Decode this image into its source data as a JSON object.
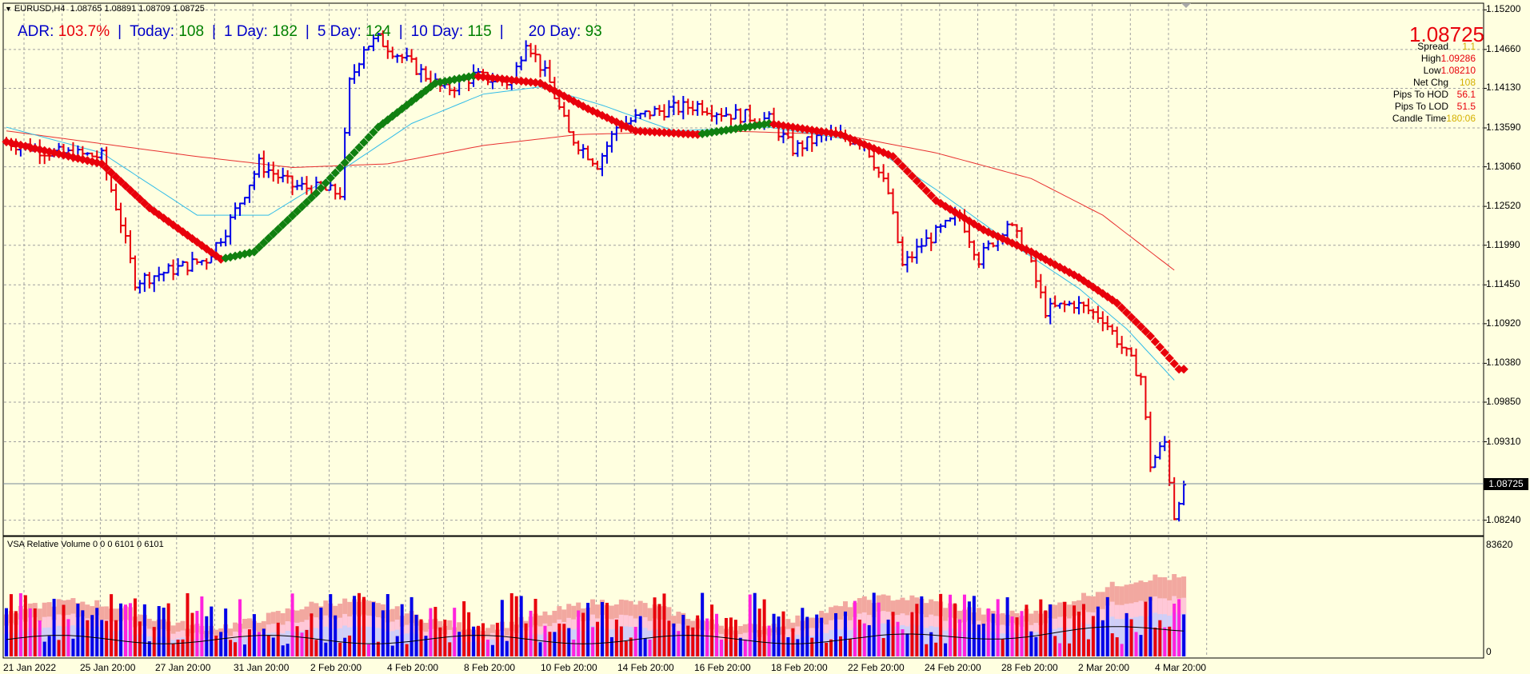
{
  "header": {
    "symbol": "EURUSD,H4",
    "ohlc": "1.08765 1.08891 1.08709 1.08725"
  },
  "adr": {
    "adr_label": "ADR:",
    "adr_value": "103.7%",
    "today_label": "Today:",
    "today_value": "108",
    "day1_label": "1 Day:",
    "day1_value": "182",
    "day5_label": "5 Day:",
    "day5_value": "124",
    "day10_label": "10 Day:",
    "day10_value": "115",
    "day20_label": "20 Day:",
    "day20_value": "93"
  },
  "info_panel": {
    "price": "1.08725",
    "rows": [
      {
        "label": "Spread",
        "value": "1.1",
        "color": "#D4B000"
      },
      {
        "label": "High",
        "value": "1.09286",
        "color": "#E8000B"
      },
      {
        "label": "Low",
        "value": "1.08210",
        "color": "#E8000B"
      },
      {
        "label": "Net Chg",
        "value": "108",
        "color": "#D4B000"
      },
      {
        "label": "Pips To HOD",
        "value": "56.1",
        "color": "#E8000B"
      },
      {
        "label": "Pips To LOD",
        "value": "51.5",
        "color": "#E8000B"
      },
      {
        "label": "Candle Time",
        "value": "180:06",
        "color": "#D4B000"
      }
    ]
  },
  "subwindow": {
    "label": "VSA Relative Volume 0 0 0 6101 0 6101",
    "ymax_label": "83620",
    "ymin_label": "0"
  },
  "chart_data": {
    "type": "bar",
    "price_axis": {
      "ticks": [
        "1.15200",
        "1.14660",
        "1.14130",
        "1.13590",
        "1.13060",
        "1.12520",
        "1.11990",
        "1.11450",
        "1.10920",
        "1.10380",
        "1.09850",
        "1.09310",
        "1.08725",
        "1.08240"
      ],
      "ylim": [
        1.0804,
        1.1528
      ],
      "current_price": "1.08725"
    },
    "time_axis": {
      "labels": [
        "21 Jan 2022",
        "25 Jan 20:00",
        "27 Jan 20:00",
        "31 Jan 20:00",
        "2 Feb 20:00",
        "4 Feb 20:00",
        "8 Feb 20:00",
        "10 Feb 20:00",
        "14 Feb 20:00",
        "16 Feb 20:00",
        "18 Feb 20:00",
        "22 Feb 20:00",
        "24 Feb 20:00",
        "28 Feb 20:00",
        "2 Mar 20:00",
        "4 Mar 20:00"
      ]
    },
    "price_path": [
      [
        0,
        1.134
      ],
      [
        10,
        1.1325
      ],
      [
        20,
        1.132
      ],
      [
        24,
        1.123
      ],
      [
        27,
        1.115
      ],
      [
        32,
        1.116
      ],
      [
        42,
        1.118
      ],
      [
        46,
        1.122
      ],
      [
        53,
        1.131
      ],
      [
        60,
        1.128
      ],
      [
        66,
        1.1275
      ],
      [
        70,
        1.127
      ],
      [
        72,
        1.142
      ],
      [
        75,
        1.147
      ],
      [
        78,
        1.148
      ],
      [
        82,
        1.146
      ],
      [
        88,
        1.143
      ],
      [
        92,
        1.141
      ],
      [
        98,
        1.143
      ],
      [
        106,
        1.142
      ],
      [
        109,
        1.148
      ],
      [
        114,
        1.142
      ],
      [
        118,
        1.135
      ],
      [
        124,
        1.131
      ],
      [
        128,
        1.136
      ],
      [
        135,
        1.138
      ],
      [
        145,
        1.139
      ],
      [
        150,
        1.138
      ],
      [
        160,
        1.137
      ],
      [
        165,
        1.133
      ],
      [
        172,
        1.135
      ],
      [
        180,
        1.134
      ],
      [
        185,
        1.127
      ],
      [
        188,
        1.117
      ],
      [
        192,
        1.12
      ],
      [
        200,
        1.124
      ],
      [
        204,
        1.118
      ],
      [
        210,
        1.123
      ],
      [
        214,
        1.119
      ],
      [
        218,
        1.111
      ],
      [
        224,
        1.112
      ],
      [
        230,
        1.11
      ],
      [
        234,
        1.106
      ],
      [
        238,
        1.102
      ],
      [
        240,
        1.09
      ],
      [
        243,
        1.093
      ],
      [
        245,
        1.083
      ],
      [
        247,
        1.088
      ]
    ],
    "series": [
      {
        "name": "",
        "kind": "sma-fast",
        "color": "#33BDE8",
        "points": [
          [
            0,
            1.136
          ],
          [
            20,
            1.1325
          ],
          [
            40,
            1.124
          ],
          [
            55,
            1.124
          ],
          [
            70,
            1.13
          ],
          [
            85,
            1.1365
          ],
          [
            100,
            1.1405
          ],
          [
            112,
            1.1415
          ],
          [
            125,
            1.139
          ],
          [
            140,
            1.1355
          ],
          [
            160,
            1.136
          ],
          [
            180,
            1.134
          ],
          [
            195,
            1.1275
          ],
          [
            210,
            1.1205
          ],
          [
            225,
            1.114
          ],
          [
            235,
            1.1085
          ],
          [
            245,
            1.1015
          ]
        ]
      },
      {
        "name": "",
        "kind": "sma-slow",
        "color": "#E83030",
        "points": [
          [
            0,
            1.1355
          ],
          [
            40,
            1.132
          ],
          [
            60,
            1.1305
          ],
          [
            80,
            1.131
          ],
          [
            100,
            1.1335
          ],
          [
            120,
            1.135
          ],
          [
            150,
            1.1355
          ],
          [
            175,
            1.135
          ],
          [
            195,
            1.1325
          ],
          [
            215,
            1.129
          ],
          [
            230,
            1.124
          ],
          [
            245,
            1.1165
          ]
        ]
      },
      {
        "name": "",
        "kind": "trend-dots",
        "points": [
          [
            0,
            1.134
          ],
          [
            20,
            1.131
          ],
          [
            30,
            1.125
          ],
          [
            45,
            1.118
          ],
          [
            52,
            1.119
          ],
          [
            65,
            1.127
          ],
          [
            78,
            1.136
          ],
          [
            90,
            1.142
          ],
          [
            98,
            1.143
          ],
          [
            112,
            1.142
          ],
          [
            122,
            1.1385
          ],
          [
            132,
            1.1355
          ],
          [
            145,
            1.135
          ],
          [
            160,
            1.1365
          ],
          [
            175,
            1.135
          ],
          [
            186,
            1.132
          ],
          [
            195,
            1.126
          ],
          [
            205,
            1.122
          ],
          [
            215,
            1.119
          ],
          [
            225,
            1.1155
          ],
          [
            233,
            1.112
          ],
          [
            240,
            1.1075
          ],
          [
            246,
            1.103
          ]
        ]
      }
    ],
    "volume_axis": {
      "ylim": [
        0,
        83620
      ]
    }
  }
}
